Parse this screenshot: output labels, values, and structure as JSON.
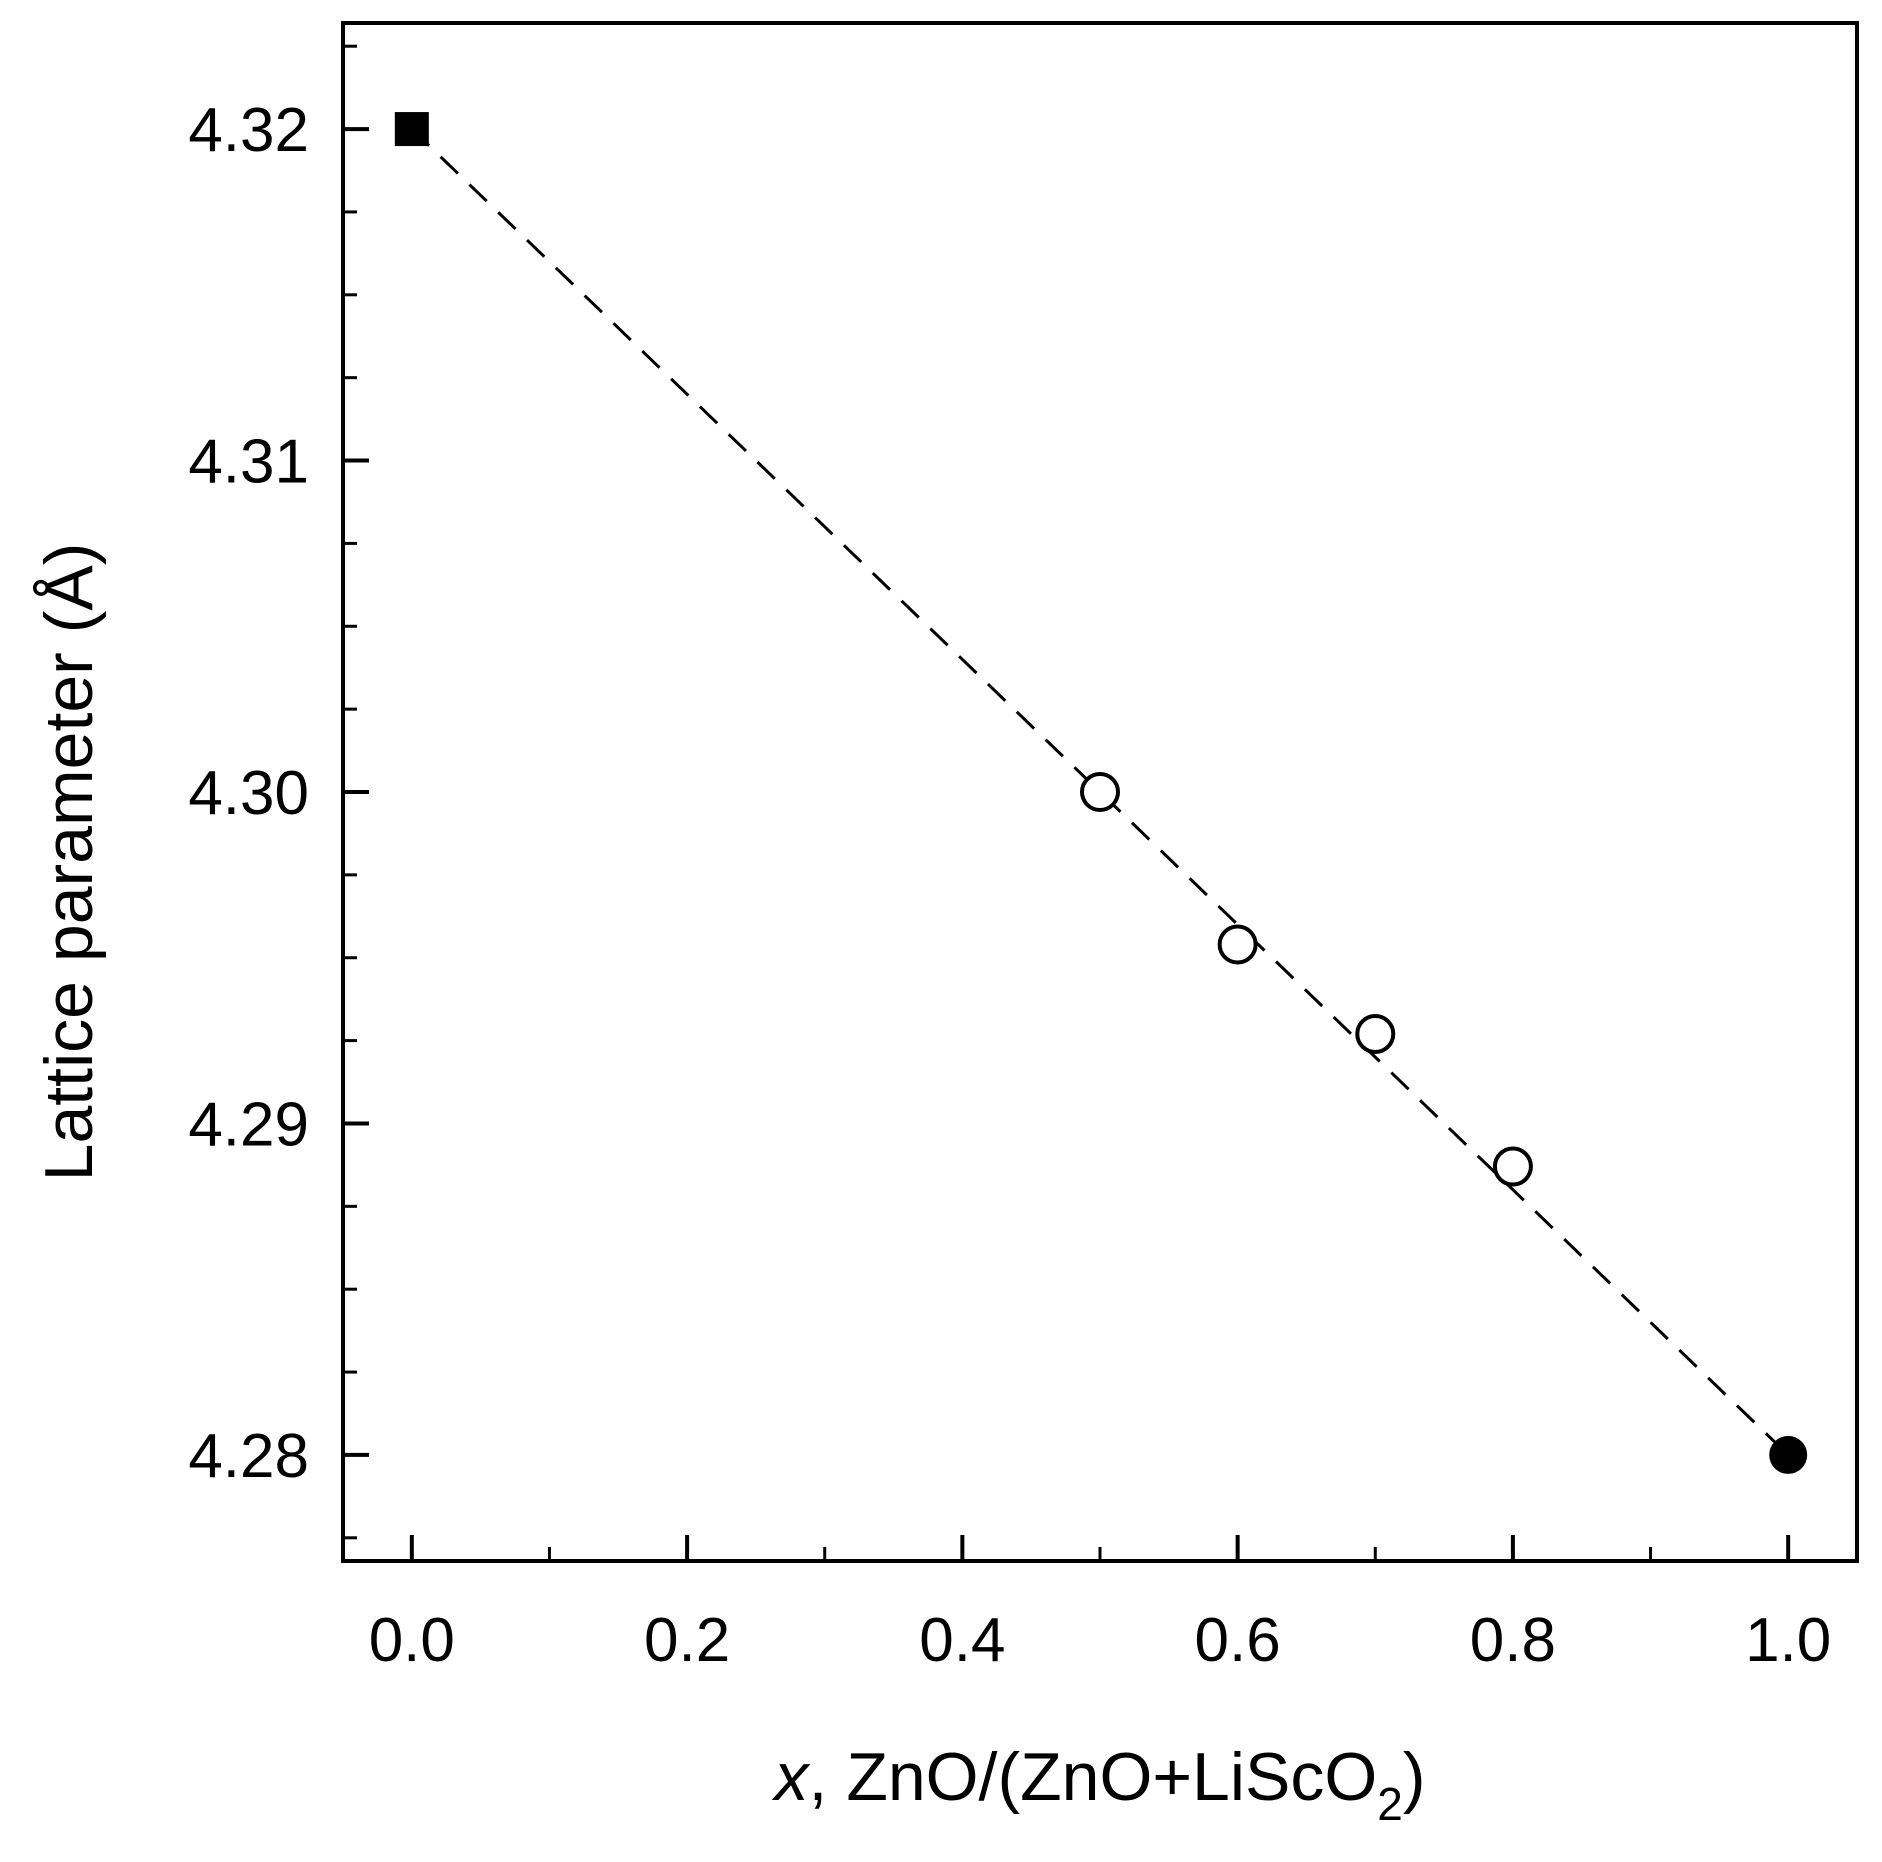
{
  "chart_data": {
    "type": "scatter",
    "title": "",
    "xlabel": {
      "var": "x",
      "sep": ", ",
      "main": "ZnO/(ZnO+LiScO",
      "sub": "2",
      "tail": ")"
    },
    "ylabel": "Lattice parameter (Å)",
    "xlim": [
      -0.05,
      1.05
    ],
    "ylim": [
      4.2768,
      4.3232
    ],
    "x_ticks": [
      "0.0",
      "0.2",
      "0.4",
      "0.6",
      "0.8",
      "1.0"
    ],
    "x_tick_values": [
      0.0,
      0.2,
      0.4,
      0.6,
      0.8,
      1.0
    ],
    "y_ticks": [
      "4.28",
      "4.29",
      "4.30",
      "4.31",
      "4.32"
    ],
    "y_tick_values": [
      4.28,
      4.29,
      4.3,
      4.31,
      4.32
    ],
    "grid": false,
    "legend": null,
    "series": [
      {
        "marker": "filled-square",
        "color": "#000000",
        "points": [
          {
            "x": 0.0,
            "y": 4.32
          }
        ]
      },
      {
        "marker": "open-circle",
        "color": "#000000",
        "points": [
          {
            "x": 0.5,
            "y": 4.3
          },
          {
            "x": 0.6,
            "y": 4.2954
          },
          {
            "x": 0.7,
            "y": 4.2927
          },
          {
            "x": 0.8,
            "y": 4.2887
          }
        ]
      },
      {
        "marker": "filled-circle",
        "color": "#000000",
        "points": [
          {
            "x": 1.0,
            "y": 4.28
          }
        ]
      }
    ],
    "reference_line": {
      "style": "dashed",
      "color": "#000000",
      "points": [
        {
          "x": 0.0,
          "y": 4.32
        },
        {
          "x": 1.0,
          "y": 4.28
        }
      ]
    }
  }
}
